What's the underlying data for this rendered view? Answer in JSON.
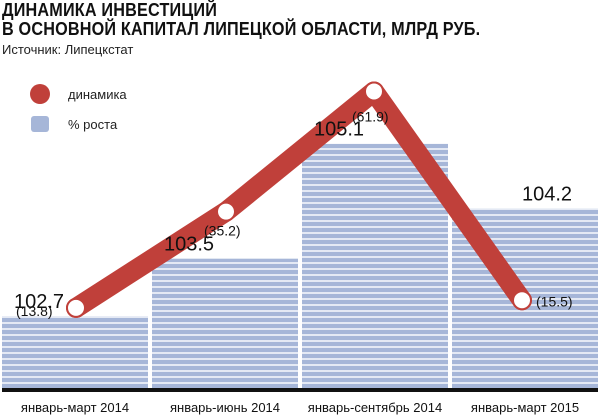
{
  "chart_data": {
    "type": "bar",
    "title": "ДИНАМИКА ИНВЕСТИЦИЙ\nВ ОСНОВНОЙ КАПИТАЛ ЛИПЕЦКОЙ ОБЛАСТИ, МЛРД РУБ.",
    "title_lines": [
      "ДИНАМИКА ИНВЕСТИЦИЙ",
      "В ОСНОВНОЙ КАПИТАЛ ЛИПЕЦКОЙ ОБЛАСТИ, МЛРД РУБ."
    ],
    "source": "Источник: Липецкстат",
    "categories": [
      "январь-март 2014",
      "январь-июнь 2014",
      "январь-сентябрь 2014",
      "январь-март 2015"
    ],
    "series": [
      {
        "name": "% роста",
        "type": "bar",
        "values": [
          102.7,
          103.5,
          105.1,
          104.2
        ],
        "labels": [
          "102.7",
          "103.5",
          "105.1",
          "104.2"
        ],
        "color": "#9fb0d3"
      },
      {
        "name": "динамика",
        "type": "line",
        "values": [
          13.8,
          35.2,
          61.9,
          15.5
        ],
        "labels": [
          "(13.8)",
          "(35.2)",
          "(61.9)",
          "(15.5)"
        ],
        "color": "#c0403a"
      }
    ],
    "bar_ylim": [
      101.7,
      105.5
    ],
    "line_ylim": [
      0,
      70
    ],
    "legend": [
      "динамика",
      "% роста"
    ],
    "legend_position": "top-left",
    "grid": false
  }
}
